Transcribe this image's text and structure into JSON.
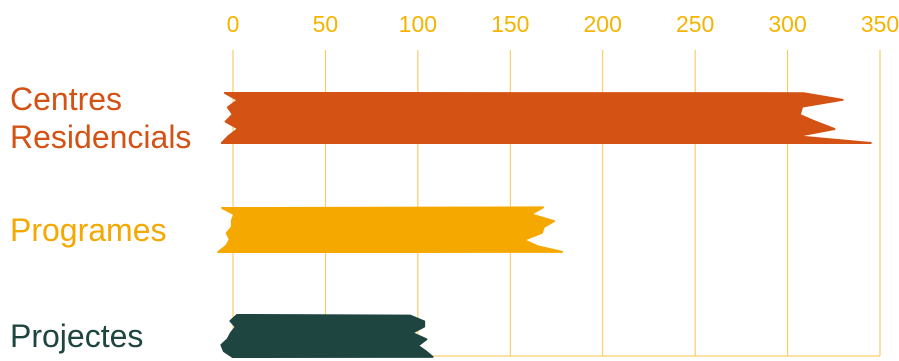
{
  "chart_data": {
    "type": "bar",
    "orientation": "horizontal",
    "categories": [
      [
        "Centres",
        "Residencials"
      ],
      [
        "Programes"
      ],
      [
        "Projectes"
      ]
    ],
    "values": [
      345,
      178,
      108
    ],
    "xlim": [
      0,
      350
    ],
    "xticks": [
      0,
      50,
      100,
      150,
      200,
      250,
      300,
      350
    ],
    "grid": true,
    "legend": "none",
    "style": "brush-stroke",
    "colors": {
      "bars": [
        "#d35214",
        "#f5a800",
        "#1f4540"
      ],
      "labels": [
        "#d35214",
        "#f5a800",
        "#1f4540"
      ],
      "axis": "#f5b400",
      "grid": "#f7c64a"
    }
  }
}
